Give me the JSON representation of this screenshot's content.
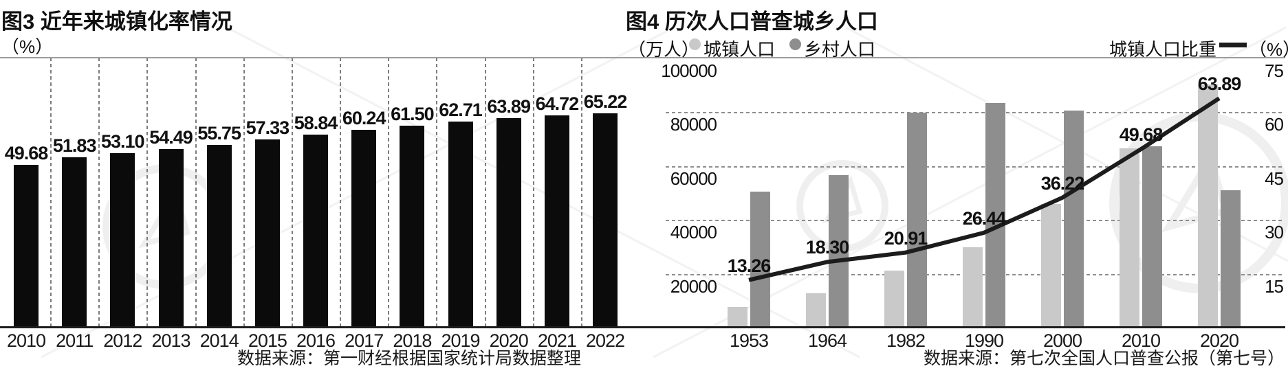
{
  "colors": {
    "bar": "#0b0b0b",
    "urban_bar": "#c9c9c9",
    "rural_bar": "#8e8e8e",
    "trend_line": "#1c1c1c",
    "gridline": "#8a8a8a",
    "axis_line": "#1d1d1d",
    "top_border": "#9c9c9c",
    "text": "#111111"
  },
  "charts": {
    "urbanization": {
      "title": "图3 近年来城镇化率情况",
      "unit_label": "（%）",
      "source": "数据来源：第一财经根据国家统计局数据整理"
    },
    "census": {
      "title": "图4  历次人口普查城乡人口",
      "unit_label": "（万人）",
      "right_unit_label": "（%）",
      "source": "数据来源：第七次全国人口普查公报（第七号）"
    }
  },
  "chart_data": [
    {
      "type": "bar",
      "title": "图3 近年来城镇化率情况",
      "ylabel": "（%）",
      "categories": [
        "2010",
        "2011",
        "2012",
        "2013",
        "2014",
        "2015",
        "2016",
        "2017",
        "2018",
        "2019",
        "2020",
        "2021",
        "2022"
      ],
      "values": [
        49.68,
        51.83,
        53.1,
        54.49,
        55.75,
        57.33,
        58.84,
        60.24,
        61.5,
        62.71,
        63.89,
        64.72,
        65.22
      ],
      "labels": [
        "49.68",
        "51.83",
        "53.10",
        "54.49",
        "55.75",
        "57.33",
        "58.84",
        "60.24",
        "61.50",
        "62.71",
        "63.89",
        "64.72",
        "65.22"
      ],
      "ylim": [
        0,
        82
      ],
      "grid": "vertical-dashed",
      "source": "数据来源：第一财经根据国家统计局数据整理"
    },
    {
      "type": "bar+line",
      "title": "图4  历次人口普查城乡人口",
      "categories": [
        "1953",
        "1964",
        "1982",
        "1990",
        "2000",
        "2010",
        "2020"
      ],
      "series": [
        {
          "name": "城镇人口",
          "type": "bar",
          "axis": "left",
          "color_key": "urban_bar",
          "values": [
            7726,
            12710,
            21082,
            29971,
            45844,
            66557,
            90199
          ]
        },
        {
          "name": "乡村人口",
          "type": "bar",
          "axis": "left",
          "color_key": "rural_bar",
          "values": [
            50534,
            56748,
            79736,
            83397,
            80739,
            67415,
            50979
          ]
        },
        {
          "name": "城镇人口比重",
          "type": "line",
          "axis": "right",
          "color_key": "trend_line",
          "values": [
            13.26,
            18.3,
            20.91,
            26.44,
            36.22,
            49.68,
            63.89
          ],
          "labels": [
            "13.26",
            "18.30",
            "20.91",
            "26.44",
            "36.22",
            "49.68",
            "63.89"
          ]
        }
      ],
      "left_axis": {
        "label": "（万人）",
        "range": [
          0,
          100000
        ],
        "ticks": [
          100000,
          80000,
          60000,
          40000,
          20000
        ],
        "tick_labels": [
          "100000",
          "80000",
          "60000",
          "40000",
          "20000"
        ]
      },
      "right_axis": {
        "label": "（%）",
        "range": [
          0,
          75
        ],
        "ticks": [
          75,
          60,
          45,
          30,
          15
        ],
        "tick_labels": [
          "75",
          "60",
          "45",
          "30",
          "15"
        ]
      },
      "grid": "horizontal-dashed",
      "legend_position": "top",
      "source": "数据来源：第七次全国人口普查公报（第七号）"
    }
  ]
}
